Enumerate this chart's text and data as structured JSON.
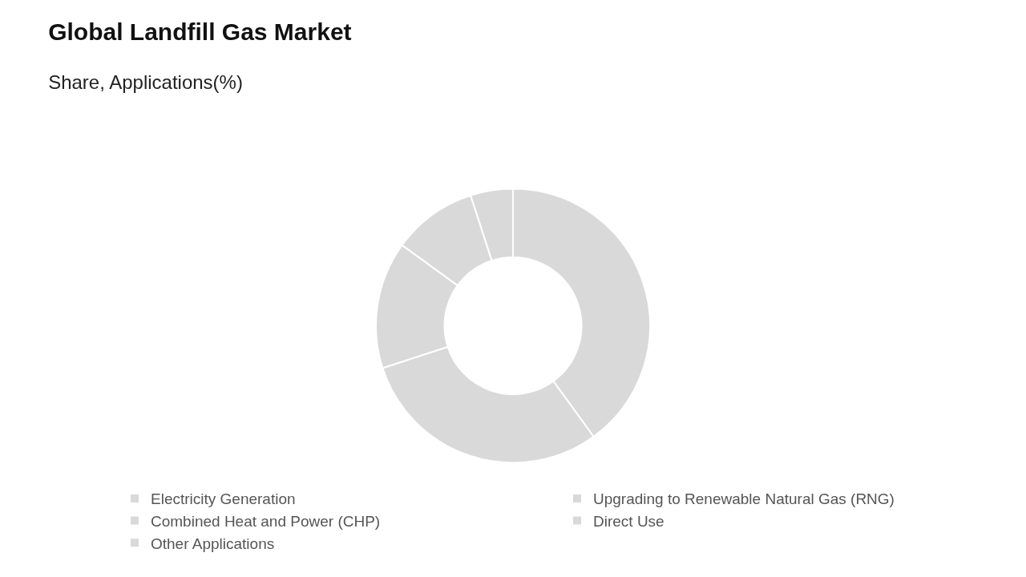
{
  "chart_data": {
    "type": "donut",
    "title": "Global Landfill Gas Market",
    "subtitle": "Share, Applications(%)",
    "categories": [
      "Electricity Generation",
      "Upgrading to Renewable Natural Gas (RNG)",
      "Combined Heat and Power (CHP)",
      "Direct Use",
      "Other Applications"
    ],
    "values": [
      40,
      30,
      15,
      10,
      5
    ],
    "colors": [
      "#d9d9d9",
      "#d9d9d9",
      "#d9d9d9",
      "#d9d9d9",
      "#d9d9d9"
    ],
    "legend": "bottom"
  }
}
